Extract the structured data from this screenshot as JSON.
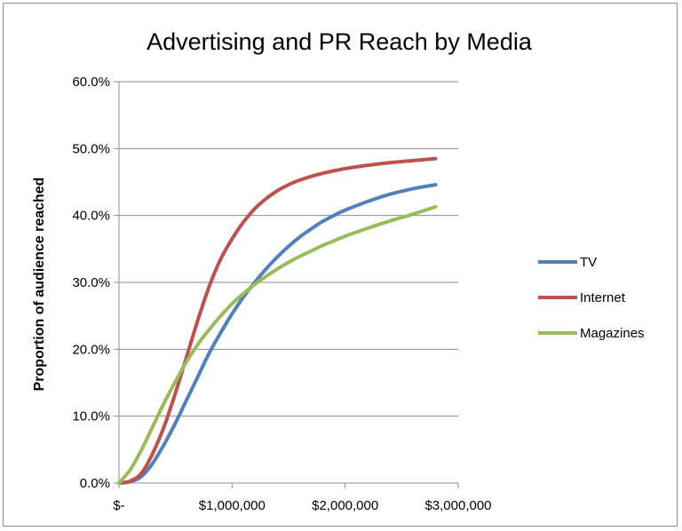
{
  "chart_data": {
    "type": "line",
    "title": "Advertising and PR Reach by Media",
    "ylabel": "Proportion of audience reached",
    "xlabel": "",
    "xlim": [
      0,
      3000000
    ],
    "ylim": [
      0,
      0.6
    ],
    "x_ticks": [
      {
        "value": 0,
        "label": "$-"
      },
      {
        "value": 1000000,
        "label": "$1,000,000"
      },
      {
        "value": 2000000,
        "label": "$2,000,000"
      },
      {
        "value": 3000000,
        "label": "$3,000,000"
      }
    ],
    "y_ticks": [
      {
        "value": 0,
        "label": "0.0%"
      },
      {
        "value": 0.1,
        "label": "10.0%"
      },
      {
        "value": 0.2,
        "label": "20.0%"
      },
      {
        "value": 0.3,
        "label": "30.0%"
      },
      {
        "value": 0.4,
        "label": "40.0%"
      },
      {
        "value": 0.5,
        "label": "50.0%"
      },
      {
        "value": 0.6,
        "label": "60.0%"
      }
    ],
    "grid": "horizontal",
    "legend": "right",
    "series": [
      {
        "name": "TV",
        "color": "#4f81bd",
        "points": [
          [
            0,
            0
          ],
          [
            100000,
            0.002
          ],
          [
            200000,
            0.01
          ],
          [
            300000,
            0.03
          ],
          [
            400000,
            0.058
          ],
          [
            500000,
            0.09
          ],
          [
            600000,
            0.125
          ],
          [
            700000,
            0.16
          ],
          [
            800000,
            0.195
          ],
          [
            900000,
            0.225
          ],
          [
            1000000,
            0.253
          ],
          [
            1100000,
            0.278
          ],
          [
            1200000,
            0.3
          ],
          [
            1300000,
            0.32
          ],
          [
            1400000,
            0.338
          ],
          [
            1500000,
            0.354
          ],
          [
            1600000,
            0.368
          ],
          [
            1700000,
            0.38
          ],
          [
            1800000,
            0.391
          ],
          [
            1900000,
            0.4
          ],
          [
            2000000,
            0.408
          ],
          [
            2200000,
            0.421
          ],
          [
            2400000,
            0.432
          ],
          [
            2600000,
            0.44
          ],
          [
            2800000,
            0.446
          ]
        ]
      },
      {
        "name": "Internet",
        "color": "#c0504d",
        "points": [
          [
            0,
            0
          ],
          [
            100000,
            0.003
          ],
          [
            200000,
            0.015
          ],
          [
            300000,
            0.045
          ],
          [
            400000,
            0.085
          ],
          [
            500000,
            0.135
          ],
          [
            600000,
            0.19
          ],
          [
            700000,
            0.245
          ],
          [
            800000,
            0.295
          ],
          [
            900000,
            0.335
          ],
          [
            1000000,
            0.365
          ],
          [
            1100000,
            0.39
          ],
          [
            1200000,
            0.41
          ],
          [
            1300000,
            0.425
          ],
          [
            1400000,
            0.437
          ],
          [
            1500000,
            0.446
          ],
          [
            1600000,
            0.453
          ],
          [
            1800000,
            0.463
          ],
          [
            2000000,
            0.47
          ],
          [
            2200000,
            0.475
          ],
          [
            2400000,
            0.479
          ],
          [
            2600000,
            0.482
          ],
          [
            2800000,
            0.485
          ]
        ]
      },
      {
        "name": "Magazines",
        "color": "#9bbb59",
        "points": [
          [
            0,
            0
          ],
          [
            100000,
            0.02
          ],
          [
            200000,
            0.05
          ],
          [
            300000,
            0.085
          ],
          [
            400000,
            0.12
          ],
          [
            500000,
            0.152
          ],
          [
            600000,
            0.182
          ],
          [
            700000,
            0.208
          ],
          [
            800000,
            0.23
          ],
          [
            900000,
            0.25
          ],
          [
            1000000,
            0.268
          ],
          [
            1100000,
            0.283
          ],
          [
            1200000,
            0.297
          ],
          [
            1300000,
            0.309
          ],
          [
            1400000,
            0.32
          ],
          [
            1500000,
            0.33
          ],
          [
            1600000,
            0.339
          ],
          [
            1700000,
            0.347
          ],
          [
            1800000,
            0.355
          ],
          [
            1900000,
            0.362
          ],
          [
            2000000,
            0.369
          ],
          [
            2200000,
            0.381
          ],
          [
            2400000,
            0.392
          ],
          [
            2600000,
            0.402
          ],
          [
            2800000,
            0.413
          ]
        ]
      }
    ]
  }
}
